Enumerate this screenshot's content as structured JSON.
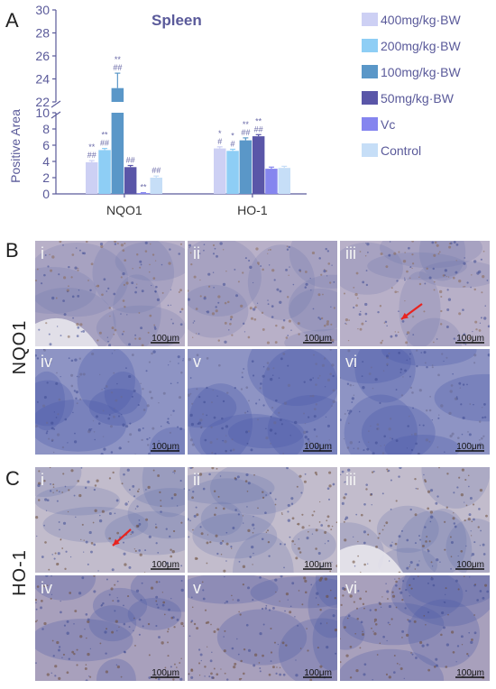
{
  "panel_labels": {
    "a": "A",
    "b": "B",
    "c": "C"
  },
  "chart_data": {
    "type": "bar",
    "title": "Spleen",
    "ylabel": "Positive Area",
    "xlabel": "",
    "ylim": [
      0,
      30
    ],
    "axis_break": {
      "lower": [
        0,
        10
      ],
      "upper": [
        22,
        30
      ]
    },
    "yticks": [
      "0",
      "2",
      "4",
      "6",
      "8",
      "10",
      "22",
      "24",
      "26",
      "28",
      "30"
    ],
    "categories": [
      "NQO1",
      "HO-1"
    ],
    "series": [
      {
        "name": "400mg/kg·BW",
        "color": "#cdd0f4",
        "values": [
          3.9,
          5.6
        ],
        "errors": [
          0.2,
          0.2
        ],
        "sig": [
          [
            "**",
            "##"
          ],
          [
            "*",
            "#"
          ]
        ]
      },
      {
        "name": "200mg/kg·BW",
        "color": "#8ecef5",
        "values": [
          5.4,
          5.3
        ],
        "errors": [
          0.2,
          0.2
        ],
        "sig": [
          [
            "**",
            "##"
          ],
          [
            "*",
            "#"
          ]
        ]
      },
      {
        "name": "100mg/kg·BW",
        "color": "#5a97c8",
        "values": [
          23.2,
          6.6
        ],
        "errors": [
          1.3,
          0.3
        ],
        "sig": [
          [
            "**",
            "##"
          ],
          [
            "**",
            "##"
          ]
        ]
      },
      {
        "name": "50mg/kg·BW",
        "color": "#5a56a8",
        "values": [
          3.3,
          7.1
        ],
        "errors": [
          0.2,
          0.2
        ],
        "sig": [
          [
            "##"
          ],
          [
            "**",
            "##"
          ]
        ]
      },
      {
        "name": "Vc",
        "color": "#8585ef",
        "values": [
          0.1,
          3.1
        ],
        "errors": [
          0.05,
          0.2
        ],
        "sig": [
          [
            "**"
          ],
          []
        ]
      },
      {
        "name": "Control",
        "color": "#c6def7",
        "values": [
          2.0,
          3.2
        ],
        "errors": [
          0.2,
          0.2
        ],
        "sig": [
          [
            "##"
          ],
          []
        ]
      }
    ]
  },
  "micrographs": {
    "row_labels": {
      "b": "NQO1",
      "c": "HO-1"
    },
    "scale_bar": "100μm",
    "roman": [
      "i",
      "ii",
      "iii",
      "iv",
      "v",
      "vi"
    ],
    "arrow_color": "#e8231f",
    "stain_colors": {
      "brown": "#9a7a62",
      "blue": "#5a6aa8",
      "light": "#c9c2d6"
    }
  }
}
